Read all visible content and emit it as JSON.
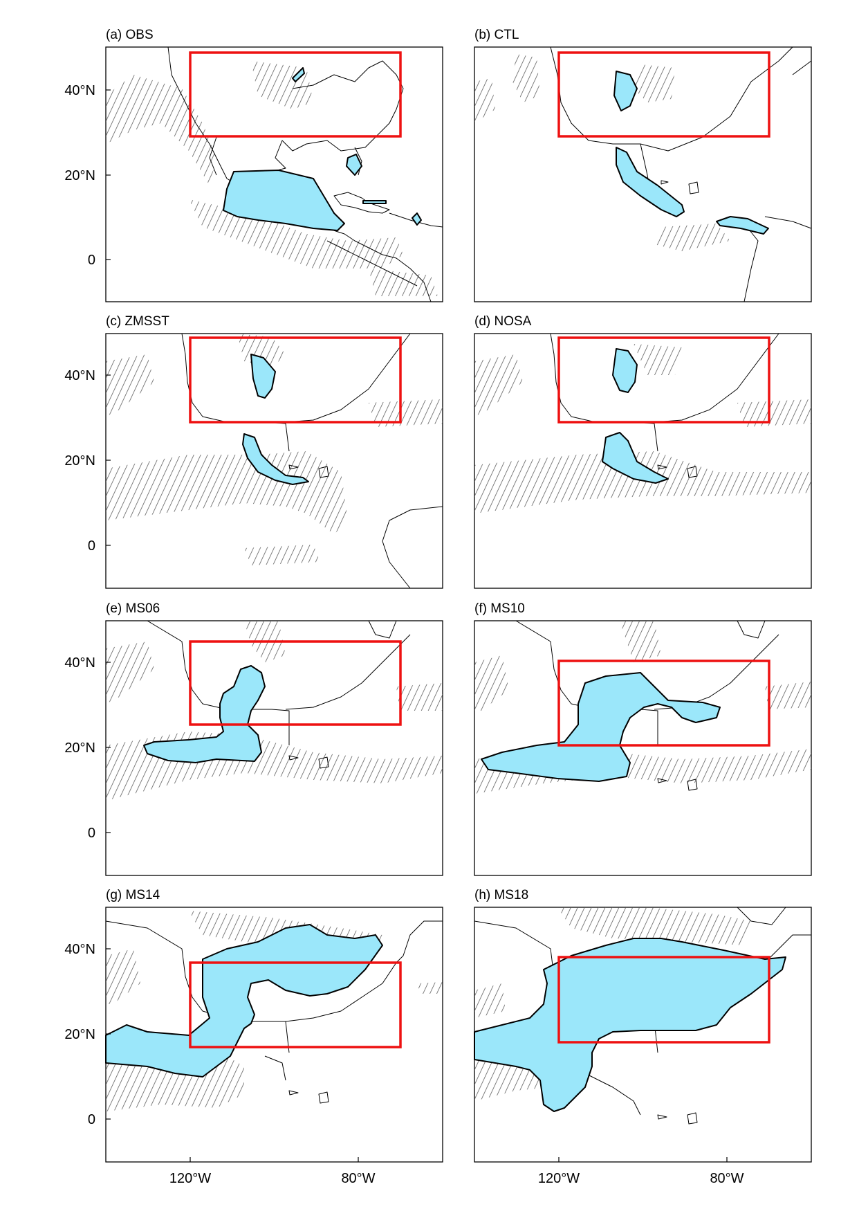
{
  "panels": [
    {
      "id": "a",
      "title": "(a) OBS"
    },
    {
      "id": "b",
      "title": "(b) CTL"
    },
    {
      "id": "c",
      "title": "(c) ZMSST"
    },
    {
      "id": "d",
      "title": "(d) NOSA"
    },
    {
      "id": "e",
      "title": "(e) MS06"
    },
    {
      "id": "f",
      "title": "(f) MS10"
    },
    {
      "id": "g",
      "title": "(g) MS14"
    },
    {
      "id": "h",
      "title": "(h) MS18"
    }
  ],
  "y_ticks": [
    "40°N",
    "20°N",
    "0"
  ],
  "x_ticks": [
    "120°W",
    "80°W"
  ],
  "colors": {
    "shading": "#9be7fa",
    "target_box": "#ee1111",
    "hatching": "#555555",
    "coastline": "#000000"
  }
}
